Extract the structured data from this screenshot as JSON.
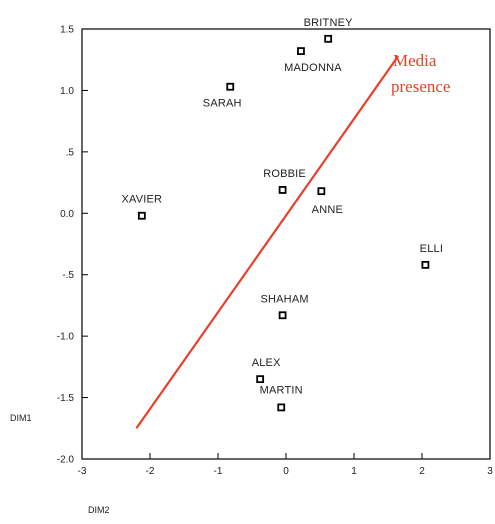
{
  "chart_data": {
    "type": "scatter",
    "title": "",
    "xlabel": "DIM2",
    "ylabel": "DIM1",
    "xlim": [
      -3,
      3
    ],
    "ylim": [
      -2.0,
      1.5
    ],
    "x_ticks": [
      -3,
      -2,
      -1,
      0,
      1,
      2,
      3
    ],
    "x_tick_labels": [
      "-3",
      "-2",
      "-1",
      "0",
      "1",
      "2",
      "3"
    ],
    "y_ticks": [
      1.5,
      1.0,
      0.5,
      0.0,
      -0.5,
      -1.0,
      -1.5,
      -2.0
    ],
    "y_tick_labels": [
      "1.5",
      "1.0",
      ".5",
      "0.0",
      "-.5",
      "-1.0",
      "-1.5",
      "-2.0"
    ],
    "grid": false,
    "points": [
      {
        "label": "BRITNEY",
        "x": 0.62,
        "y": 1.42
      },
      {
        "label": "MADONNA",
        "x": 0.22,
        "y": 1.32
      },
      {
        "label": "SARAH",
        "x": -0.82,
        "y": 1.03
      },
      {
        "label": "XAVIER",
        "x": -2.12,
        "y": -0.02
      },
      {
        "label": "ROBBIE",
        "x": -0.05,
        "y": 0.19
      },
      {
        "label": "ANNE",
        "x": 0.52,
        "y": 0.18
      },
      {
        "label": "ELLI",
        "x": 2.05,
        "y": -0.42
      },
      {
        "label": "SHAHAM",
        "x": -0.05,
        "y": -0.83
      },
      {
        "label": "ALEX",
        "x": -0.38,
        "y": -1.35
      },
      {
        "label": "MARTIN",
        "x": -0.07,
        "y": -1.58
      }
    ],
    "annotation": {
      "text_lines": [
        "Media",
        "presence"
      ],
      "color": "#e8402a",
      "arrow_from": {
        "x": -2.2,
        "y": -1.75
      },
      "arrow_to": {
        "x": 1.65,
        "y": 1.28
      }
    },
    "marker_color": "#000000"
  }
}
